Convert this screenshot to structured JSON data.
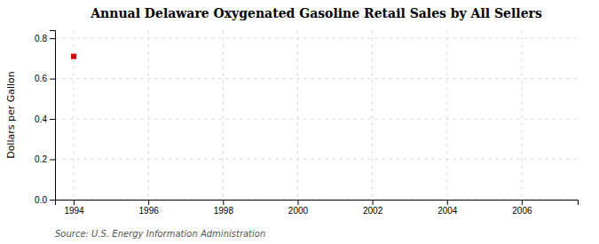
{
  "chart_data": {
    "type": "scatter",
    "title": "Annual Delaware Oxygenated Gasoline Retail Sales by All Sellers",
    "ylabel": "Dollars per Gallon",
    "annotations": [
      "Source: U.S. Energy Information Administration"
    ],
    "x": [
      1994
    ],
    "values": [
      0.71
    ],
    "color": "#cc0000",
    "marker": "square",
    "xlim": [
      1993.5,
      2007.5
    ],
    "ylim": [
      0.0,
      0.84
    ],
    "xticks": [
      1994,
      1996,
      1998,
      2000,
      2002,
      2004,
      2006
    ],
    "yticks": [
      {
        "value": 0.0,
        "label": "0.0"
      },
      0.2,
      0.4,
      0.6,
      0.8
    ],
    "grid": true
  }
}
